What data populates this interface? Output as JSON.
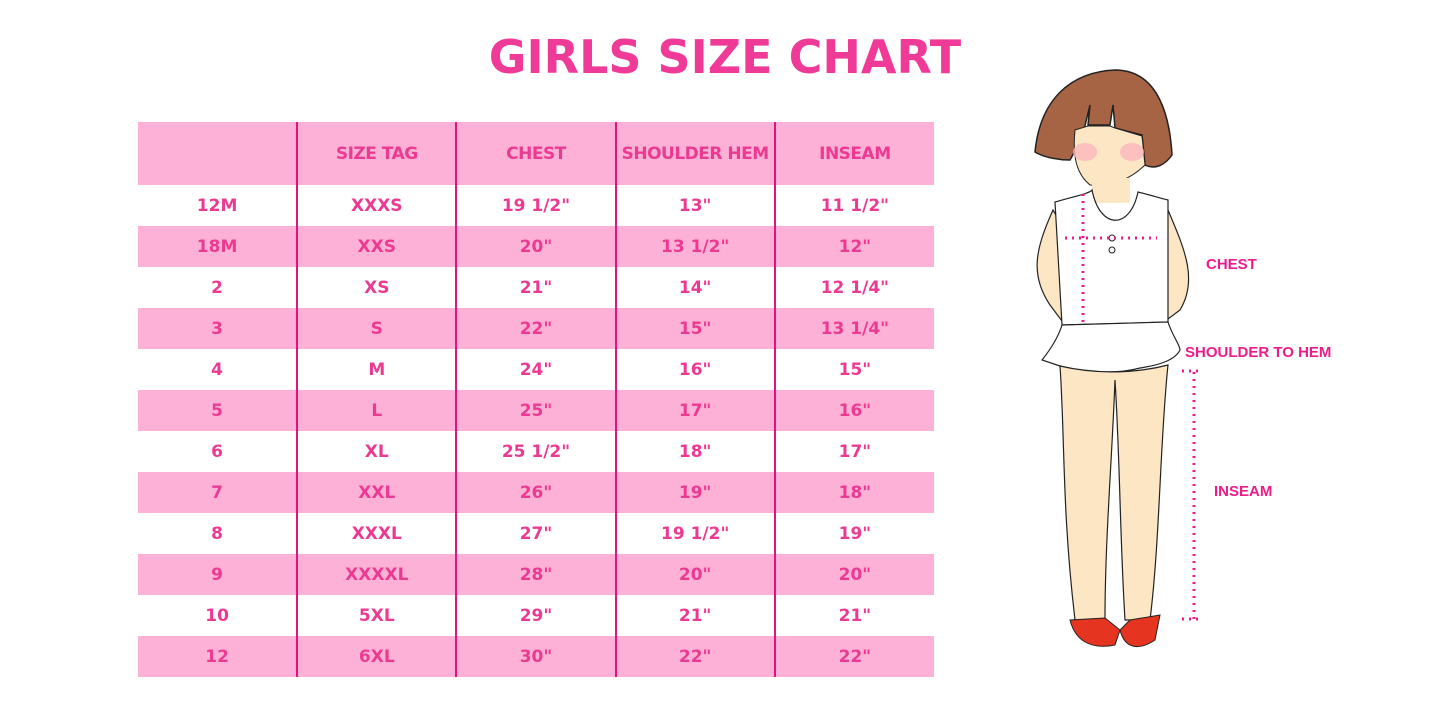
{
  "title": "GIRLS SIZE CHART",
  "table": {
    "headers": [
      "",
      "SIZE TAG",
      "CHEST",
      "SHOULDER HEM",
      "INSEAM"
    ],
    "rows": [
      [
        "12M",
        "XXXS",
        "19 1/2\"",
        "13\"",
        "11 1/2\""
      ],
      [
        "18M",
        "XXS",
        "20\"",
        "13 1/2\"",
        "12\""
      ],
      [
        "2",
        "XS",
        "21\"",
        "14\"",
        "12 1/4\""
      ],
      [
        "3",
        "S",
        "22\"",
        "15\"",
        "13 1/4\""
      ],
      [
        "4",
        "M",
        "24\"",
        "16\"",
        "15\""
      ],
      [
        "5",
        "L",
        "25\"",
        "17\"",
        "16\""
      ],
      [
        "6",
        "XL",
        "25 1/2\"",
        "18\"",
        "17\""
      ],
      [
        "7",
        "XXL",
        "26\"",
        "19\"",
        "18\""
      ],
      [
        "8",
        "XXXL",
        "27\"",
        "19 1/2\"",
        "19\""
      ],
      [
        "9",
        "XXXXL",
        "28\"",
        "20\"",
        "20\""
      ],
      [
        "10",
        "5XL",
        "29\"",
        "21\"",
        "21\""
      ],
      [
        "12",
        "6XL",
        "30\"",
        "22\"",
        "22\""
      ]
    ]
  },
  "illustration": {
    "labels": {
      "chest": "CHEST",
      "shoulder_to_hem": "SHOULDER TO HEM",
      "inseam": "INSEAM"
    }
  },
  "colors": {
    "accent": "#ef3b97",
    "row_pink": "#fdb1d6",
    "divider": "#e2127f",
    "measure_line": "#ee1b8a"
  }
}
